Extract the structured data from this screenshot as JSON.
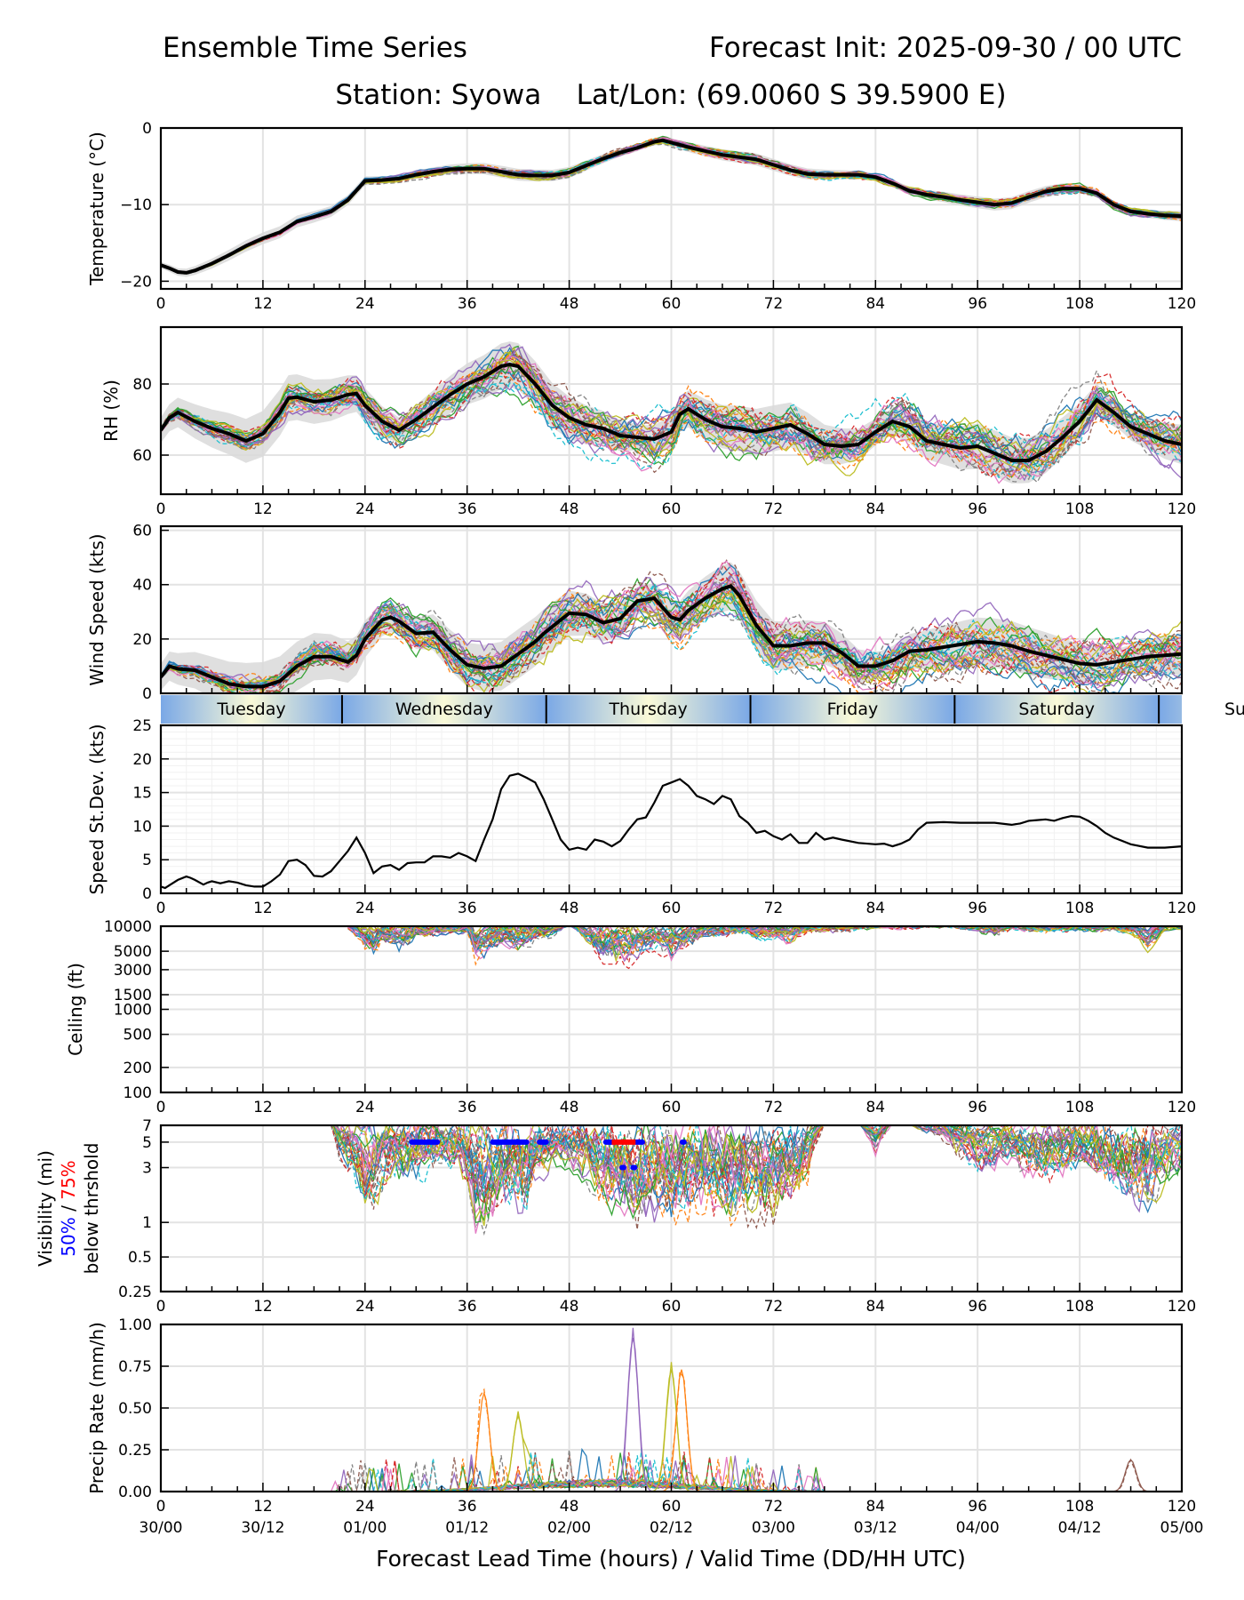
{
  "header": {
    "title_left": "Ensemble Time Series",
    "title_right": "Forecast Init: 2025-09-30 / 00 UTC",
    "subtitle": "Station: Syowa    Lat/Lon: (69.0060 S 39.5900 E)"
  },
  "x_axis": {
    "range": [
      0,
      120
    ],
    "ticks": [
      0,
      12,
      24,
      36,
      48,
      60,
      72,
      84,
      96,
      108,
      120
    ],
    "tick_labels": [
      "0",
      "12",
      "24",
      "36",
      "48",
      "60",
      "72",
      "84",
      "96",
      "108",
      "120"
    ],
    "valid_time_labels": [
      "30/00",
      "30/12",
      "01/00",
      "01/12",
      "02/00",
      "02/12",
      "03/00",
      "03/12",
      "04/00",
      "04/12",
      "05/00"
    ],
    "label": "Forecast Lead Time (hours) / Valid Time (DD/HH UTC)"
  },
  "day_band": {
    "days": [
      {
        "name": "Tuesday",
        "start": 0,
        "end": 21.3
      },
      {
        "name": "Wednesday",
        "start": 21.3,
        "end": 45.3
      },
      {
        "name": "Thursday",
        "start": 45.3,
        "end": 69.3
      },
      {
        "name": "Friday",
        "start": 69.3,
        "end": 93.3
      },
      {
        "name": "Saturday",
        "start": 93.3,
        "end": 117.3
      },
      {
        "name": "Sunday",
        "start": 117.3,
        "end": 141.3
      }
    ],
    "truncated_label": "Su",
    "colors": {
      "edge": "#7aa8e6",
      "center": "#fafad8"
    }
  },
  "member_colors": [
    "#1f77b4",
    "#ff7f0e",
    "#2ca02c",
    "#d62728",
    "#9467bd",
    "#8c564b",
    "#e377c2",
    "#7f7f7f",
    "#bcbd22",
    "#17becf"
  ],
  "chart_data": [
    {
      "id": "temperature",
      "type": "line",
      "ylabel": "Temperature (°C)",
      "ylim": [
        -21,
        0
      ],
      "yticks": [
        0,
        -10,
        -20
      ],
      "ytick_labels": [
        "0",
        "−10",
        "−20"
      ],
      "scale": "linear",
      "grid": true,
      "ensemble_mean": {
        "x": [
          0,
          1,
          2,
          3,
          4,
          6,
          8,
          10,
          12,
          14,
          16,
          18,
          20,
          22,
          24,
          26,
          28,
          30,
          32,
          34,
          36,
          38,
          40,
          42,
          44,
          46,
          48,
          50,
          52,
          54,
          56,
          58,
          59,
          60,
          62,
          64,
          66,
          68,
          70,
          72,
          74,
          76,
          78,
          80,
          82,
          84,
          86,
          88,
          90,
          92,
          94,
          96,
          98,
          100,
          102,
          104,
          106,
          108,
          110,
          112,
          114,
          116,
          118,
          120
        ],
        "y": [
          -17.9,
          -18.3,
          -18.8,
          -18.9,
          -18.6,
          -17.7,
          -16.6,
          -15.4,
          -14.4,
          -13.6,
          -12.2,
          -11.6,
          -10.9,
          -9.4,
          -6.9,
          -6.8,
          -6.6,
          -6.1,
          -5.7,
          -5.4,
          -5.3,
          -5.3,
          -5.7,
          -6.1,
          -6.2,
          -6.2,
          -5.8,
          -4.9,
          -4.0,
          -3.2,
          -2.6,
          -1.8,
          -1.6,
          -1.9,
          -2.5,
          -3.0,
          -3.5,
          -3.8,
          -4.1,
          -4.8,
          -5.5,
          -6.0,
          -6.1,
          -6.1,
          -6.1,
          -6.4,
          -7.2,
          -8.2,
          -8.7,
          -9.0,
          -9.4,
          -9.7,
          -10.0,
          -9.8,
          -9.0,
          -8.3,
          -7.9,
          -7.9,
          -8.5,
          -10.0,
          -10.9,
          -11.2,
          -11.4,
          -11.5
        ]
      },
      "spread_halfwidth": 0.6,
      "member_count": 30
    },
    {
      "id": "rh",
      "type": "line",
      "ylabel": "RH (%)",
      "ylim": [
        49,
        96
      ],
      "yticks": [
        60,
        80
      ],
      "ytick_labels": [
        "60",
        "80"
      ],
      "scale": "linear",
      "grid": true,
      "ensemble_mean": {
        "x": [
          0,
          1,
          2,
          4,
          6,
          8,
          10,
          12,
          14,
          15,
          16,
          18,
          20,
          22,
          23,
          24,
          26,
          28,
          30,
          32,
          34,
          36,
          38,
          40,
          41,
          42,
          44,
          46,
          48,
          50,
          52,
          54,
          56,
          58,
          60,
          61,
          62,
          64,
          66,
          68,
          70,
          72,
          74,
          76,
          78,
          80,
          82,
          84,
          86,
          88,
          90,
          92,
          94,
          96,
          98,
          100,
          102,
          104,
          106,
          108,
          110,
          112,
          114,
          116,
          118,
          120
        ],
        "y": [
          67,
          70.5,
          72,
          69.5,
          67.5,
          66,
          64,
          66,
          72,
          76,
          76.3,
          75,
          75.5,
          77,
          77.3,
          74,
          69.5,
          67,
          70,
          73.5,
          77,
          80,
          82,
          85,
          85.5,
          85,
          80,
          74,
          70.5,
          68.5,
          67.5,
          65.5,
          65,
          64.5,
          66.5,
          71.5,
          73,
          70,
          68,
          67.5,
          66.5,
          67.5,
          68.5,
          66,
          63,
          62.5,
          63,
          66.5,
          69.5,
          68,
          64,
          63,
          62,
          62.5,
          60.5,
          58.5,
          58.5,
          61,
          65,
          69.5,
          75.5,
          72,
          68,
          66,
          64,
          63
        ]
      },
      "spread_halfwidth": 5.0,
      "member_count": 30
    },
    {
      "id": "wind_speed",
      "type": "line",
      "ylabel": "Wind Speed (kts)",
      "ylim": [
        0,
        61.5
      ],
      "yticks": [
        0,
        20,
        40,
        60
      ],
      "ytick_labels": [
        "0",
        "20",
        "40",
        "60"
      ],
      "scale": "linear",
      "grid": true,
      "ensemble_mean": {
        "x": [
          0,
          1,
          2,
          4,
          6,
          8,
          10,
          12,
          14,
          16,
          18,
          20,
          22,
          23,
          24,
          26,
          27,
          28,
          30,
          32,
          34,
          36,
          38,
          40,
          42,
          44,
          45,
          46,
          48,
          50,
          52,
          54,
          56,
          58,
          60,
          61,
          62,
          64,
          66,
          67,
          68,
          70,
          72,
          74,
          76,
          78,
          80,
          82,
          84,
          86,
          88,
          90,
          92,
          94,
          96,
          98,
          100,
          102,
          104,
          106,
          108,
          110,
          112,
          114,
          116,
          118,
          120
        ],
        "y": [
          6,
          10,
          9,
          8.5,
          6,
          3.5,
          2.5,
          2.5,
          4.5,
          10,
          13.5,
          13.5,
          11.5,
          14,
          20,
          27,
          28,
          26.5,
          22,
          22.5,
          16,
          10.5,
          9.2,
          10,
          14.5,
          19,
          22,
          24.5,
          29.5,
          29,
          26,
          27.5,
          34,
          35,
          28,
          27,
          30.5,
          35,
          38.5,
          39.5,
          36,
          25,
          17.5,
          17.5,
          18.5,
          18.5,
          15,
          10,
          10,
          12,
          15.5,
          16,
          17,
          18,
          19,
          18.5,
          17.5,
          15.5,
          14,
          12.5,
          11,
          10.5,
          11.5,
          12.5,
          13.5,
          14,
          14.5
        ]
      },
      "spread_halfwidth": 7.0,
      "member_count": 30
    },
    {
      "id": "speed_stdev",
      "type": "line",
      "ylabel": "Speed St.Dev. (kts)",
      "ylim": [
        0,
        25
      ],
      "yticks": [
        0,
        5,
        10,
        15,
        20,
        25
      ],
      "ytick_labels": [
        "0",
        "5",
        "10",
        "15",
        "20",
        "25"
      ],
      "scale": "linear",
      "grid": true,
      "series": [
        {
          "name": "Speed St.Dev.",
          "x": [
            0,
            0.5,
            1,
            2,
            3,
            3.5,
            4,
            5,
            5.5,
            6,
            7,
            8,
            9,
            10,
            11,
            12,
            13,
            14,
            15,
            16,
            17,
            18,
            19,
            20,
            21,
            22,
            23,
            24,
            25,
            26,
            27,
            28,
            29,
            30,
            31,
            32,
            33,
            34,
            35,
            36,
            37,
            38,
            39,
            40,
            41,
            42,
            43,
            44,
            45,
            46,
            47,
            48,
            49,
            50,
            51,
            52,
            53,
            54,
            55,
            56,
            57,
            58,
            59,
            60,
            61,
            62,
            63,
            64,
            65,
            66,
            67,
            68,
            69,
            70,
            71,
            72,
            73,
            74,
            75,
            76,
            77,
            78,
            79,
            80,
            82,
            84,
            85,
            86,
            87,
            88,
            89,
            90,
            92,
            94,
            96,
            98,
            100,
            101,
            102,
            103,
            104,
            105,
            106,
            107,
            108,
            109,
            110,
            111,
            112,
            114,
            116,
            118,
            120
          ],
          "y": [
            1.0,
            0.8,
            1.2,
            2.0,
            2.5,
            2.3,
            2.0,
            1.3,
            1.6,
            1.8,
            1.5,
            1.8,
            1.6,
            1.2,
            1.0,
            1.0,
            1.8,
            2.8,
            4.8,
            5.0,
            4.2,
            2.6,
            2.5,
            3.3,
            4.8,
            6.3,
            8.3,
            6.0,
            3.0,
            4.0,
            4.2,
            3.5,
            4.5,
            4.6,
            4.6,
            5.5,
            5.5,
            5.3,
            6.0,
            5.5,
            4.8,
            8.0,
            11.0,
            15.5,
            17.5,
            17.8,
            17.2,
            16.5,
            14.0,
            11.0,
            8.0,
            6.5,
            6.8,
            6.5,
            8.0,
            7.7,
            7.0,
            7.8,
            9.5,
            11.0,
            11.3,
            13.5,
            16.0,
            16.5,
            17.0,
            16.0,
            14.5,
            14.0,
            13.3,
            14.5,
            14.0,
            11.5,
            10.5,
            9.0,
            9.3,
            8.5,
            8.0,
            8.8,
            7.5,
            7.5,
            9.0,
            8.0,
            8.3,
            8.0,
            7.5,
            7.3,
            7.4,
            7.0,
            7.4,
            8.0,
            9.5,
            10.5,
            10.6,
            10.5,
            10.5,
            10.5,
            10.2,
            10.4,
            10.8,
            10.9,
            11.0,
            10.8,
            11.2,
            11.5,
            11.4,
            10.8,
            10.0,
            9.0,
            8.3,
            7.3,
            6.8,
            6.8,
            7.0
          ]
        }
      ]
    },
    {
      "id": "ceiling",
      "type": "line",
      "ylabel": "Ceiling (ft)",
      "ylim": [
        100,
        10000
      ],
      "scale": "log",
      "yticks": [
        100,
        200,
        500,
        1000,
        1500,
        3000,
        5000,
        10000
      ],
      "ytick_labels": [
        "100",
        "200",
        "500",
        "1000",
        "1500",
        "3000",
        "5000",
        "10000"
      ],
      "grid": true,
      "member_envelope": {
        "x": [
          22,
          24,
          25,
          26,
          28,
          30,
          32,
          34,
          36,
          37,
          38,
          40,
          42,
          44,
          46,
          48,
          50,
          52,
          54,
          55,
          56,
          58,
          60,
          62,
          64,
          66,
          68,
          70,
          72,
          74,
          76,
          80,
          84,
          88,
          92,
          96,
          98,
          100,
          104,
          108,
          112,
          114,
          116,
          118,
          120
        ],
        "min": [
          9000,
          5000,
          3500,
          6000,
          5000,
          7000,
          7500,
          8000,
          8000,
          3200,
          4000,
          5500,
          4500,
          6000,
          7000,
          10000,
          6000,
          3500,
          3500,
          3000,
          4000,
          5000,
          3400,
          5000,
          7000,
          7000,
          7500,
          6500,
          6500,
          6000,
          8000,
          8000,
          9000,
          9000,
          9500,
          8500,
          7000,
          8500,
          8000,
          8500,
          8500,
          8000,
          4500,
          8500,
          9000
        ]
      },
      "member_count": 30
    },
    {
      "id": "visibility",
      "type": "line",
      "ylabel": "Visibility (mi)",
      "ylabel_line2_parts": [
        {
          "text": "50%",
          "color": "#0000ff"
        },
        {
          "text": " / ",
          "color": "#000000"
        },
        {
          "text": "75%",
          "color": "#ff0000"
        }
      ],
      "ylabel_line3": "below thrshold",
      "ylim": [
        0.25,
        7
      ],
      "scale": "log",
      "yticks": [
        0.25,
        0.5,
        1,
        3,
        5,
        7
      ],
      "ytick_labels": [
        "0.25",
        "0.5",
        "1",
        "3",
        "5",
        "7"
      ],
      "grid": true,
      "member_envelope": {
        "x": [
          20,
          21,
          22,
          24,
          25,
          27,
          29,
          31,
          33,
          35,
          36,
          37,
          38,
          40,
          41,
          42,
          43,
          44,
          46,
          48,
          50,
          52,
          54,
          55,
          56,
          58,
          60,
          61,
          62,
          64,
          66,
          68,
          70,
          72,
          74,
          76,
          78,
          80,
          82,
          84,
          86,
          88,
          90,
          92,
          94,
          96,
          98,
          100,
          102,
          104,
          106,
          108,
          110,
          112,
          114,
          116,
          118,
          120
        ],
        "min": [
          7,
          3.5,
          2.8,
          1.2,
          1.1,
          2.0,
          1.8,
          2.2,
          2.5,
          2.8,
          1.5,
          0.8,
          0.68,
          1.1,
          1.0,
          0.9,
          0.88,
          2.0,
          2.5,
          2.8,
          2.0,
          1.2,
          1.0,
          0.8,
          0.65,
          1.0,
          0.7,
          0.75,
          1.0,
          1.2,
          0.9,
          0.82,
          0.9,
          0.95,
          1.2,
          1.8,
          7,
          7,
          7,
          3.8,
          7,
          7,
          6,
          5,
          3.5,
          2.8,
          2.6,
          3.0,
          2.3,
          1.9,
          2.3,
          2.8,
          2.2,
          1.6,
          1.3,
          1.2,
          1.8,
          2.5
        ]
      },
      "threshold_markers": {
        "p50_color": "#0000ff",
        "p75_color": "#ff0000",
        "p50_segments": [
          {
            "level": 5,
            "start": 29.5,
            "end": 32.5
          },
          {
            "level": 5,
            "start": 39,
            "end": 43
          },
          {
            "level": 5,
            "start": 44.5,
            "end": 45.3
          },
          {
            "level": 5,
            "start": 52.3,
            "end": 53.0
          },
          {
            "level": 5,
            "start": 55.8,
            "end": 56.6
          },
          {
            "level": 5,
            "start": 61.3,
            "end": 61.5
          },
          {
            "level": 3,
            "start": 54.2,
            "end": 54.4
          },
          {
            "level": 3,
            "start": 55.5,
            "end": 55.7
          }
        ],
        "p75_segments": [
          {
            "level": 5,
            "start": 53.0,
            "end": 55.8
          }
        ]
      },
      "member_count": 30
    },
    {
      "id": "precip_rate",
      "type": "line",
      "ylabel": "Precip Rate (mm/h)",
      "ylim": [
        0,
        1.0
      ],
      "yticks": [
        0,
        0.25,
        0.5,
        0.75,
        1.0
      ],
      "ytick_labels": [
        "0.00",
        "0.25",
        "0.50",
        "0.75",
        "1.00"
      ],
      "scale": "linear",
      "grid": true,
      "notable_peaks": [
        {
          "x": 38,
          "y": 0.59,
          "member_color": "#ff7f0e"
        },
        {
          "x": 42,
          "y": 0.45,
          "member_color": "#bcbd22"
        },
        {
          "x": 55.5,
          "y": 0.92,
          "member_color": "#9467bd"
        },
        {
          "x": 60,
          "y": 0.73,
          "member_color": "#bcbd22"
        },
        {
          "x": 61.2,
          "y": 0.73,
          "member_color": "#ff7f0e"
        },
        {
          "x": 114,
          "y": 0.19,
          "member_color": "#8c564b"
        }
      ],
      "member_count": 30
    }
  ]
}
